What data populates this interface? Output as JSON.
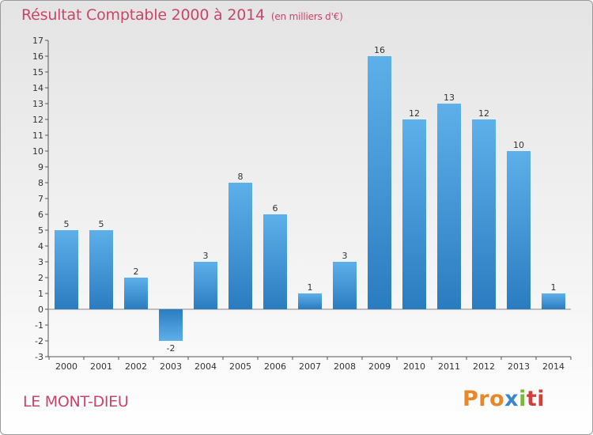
{
  "title": "Résultat Comptable 2000 à 2014",
  "subtitle": "(en milliers d'€)",
  "place": "LE MONT-DIEU",
  "logo": {
    "p1": "Pro",
    "p2": "x",
    "p3": "i",
    "p4": "ti"
  },
  "colors": {
    "title": "#c84668",
    "bar_light": "#5eb0ea",
    "bar_dark": "#2a7cc0"
  },
  "chart_data": {
    "type": "bar",
    "title": "Résultat Comptable 2000 à 2014",
    "ylabel": "",
    "xlabel": "",
    "categories": [
      "2000",
      "2001",
      "2002",
      "2003",
      "2004",
      "2005",
      "2006",
      "2007",
      "2008",
      "2009",
      "2010",
      "2011",
      "2012",
      "2013",
      "2014"
    ],
    "values": [
      5,
      5,
      2,
      -2,
      3,
      8,
      6,
      1,
      3,
      16,
      12,
      13,
      12,
      10,
      1
    ],
    "ylim": [
      -3,
      17
    ],
    "yticks": [
      -3,
      -2,
      -1,
      0,
      1,
      2,
      3,
      4,
      5,
      6,
      7,
      8,
      9,
      10,
      11,
      12,
      13,
      14,
      15,
      16,
      17
    ],
    "grid": false
  }
}
